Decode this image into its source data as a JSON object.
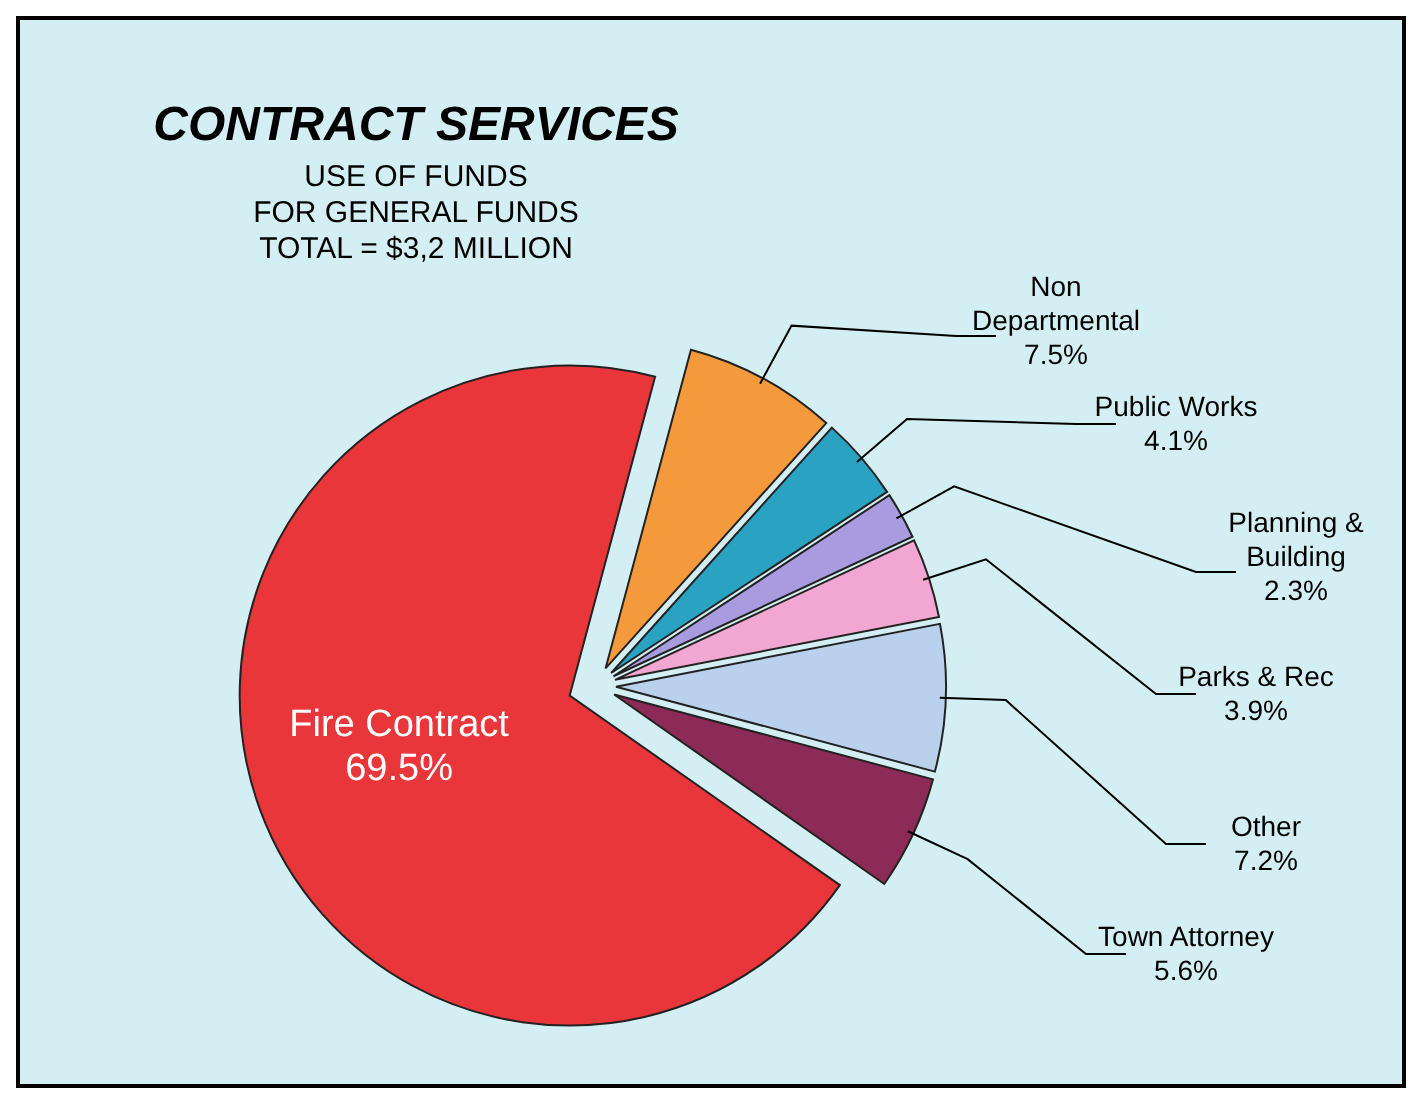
{
  "chart_data": {
    "type": "pie",
    "title": "CONTRACT SERVICES",
    "subtitle": "USE OF FUNDS\nFOR GENERAL FUNDS\nTOTAL = $3,2 MILLION",
    "categories": [
      "Non Departmental",
      "Public Works",
      "Planning & Building",
      "Parks & Rec",
      "Other",
      "Town Attorney",
      "Fire Contract"
    ],
    "values": [
      7.5,
      4.1,
      2.3,
      3.9,
      7.2,
      5.6,
      69.5
    ],
    "value_labels": [
      "7.5%",
      "4.1%",
      "2.3%",
      "3.9%",
      "7.2%",
      "5.6%",
      "69.5%"
    ],
    "colors": [
      "#f59a3c",
      "#2aa2c2",
      "#a99be0",
      "#f2a6d2",
      "#b9d1ec",
      "#8c2a58",
      "#e8363b"
    ]
  }
}
